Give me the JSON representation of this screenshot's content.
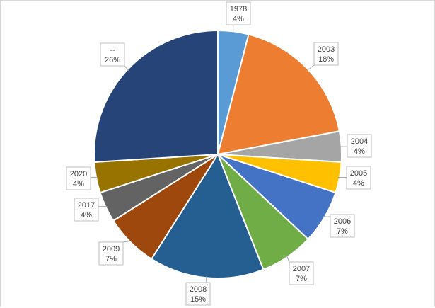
{
  "chart_data": {
    "type": "pie",
    "title": "",
    "start_angle_deg": 0,
    "direction": "clockwise",
    "slices": [
      {
        "label": "1978",
        "value": 4,
        "pct_label": "4%",
        "color": "#5b9bd5"
      },
      {
        "label": "2003",
        "value": 18,
        "pct_label": "18%",
        "color": "#ed7d31"
      },
      {
        "label": "2004",
        "value": 4,
        "pct_label": "4%",
        "color": "#a5a5a5"
      },
      {
        "label": "2005",
        "value": 4,
        "pct_label": "4%",
        "color": "#ffc000"
      },
      {
        "label": "2006",
        "value": 7,
        "pct_label": "7%",
        "color": "#4472c4"
      },
      {
        "label": "2007",
        "value": 7,
        "pct_label": "7%",
        "color": "#70ad47"
      },
      {
        "label": "2008",
        "value": 15,
        "pct_label": "15%",
        "color": "#255e91"
      },
      {
        "label": "2009",
        "value": 7,
        "pct_label": "7%",
        "color": "#9e480e"
      },
      {
        "label": "2017",
        "value": 4,
        "pct_label": "4%",
        "color": "#636363"
      },
      {
        "label": "2020",
        "value": 4,
        "pct_label": "4%",
        "color": "#997300"
      },
      {
        "label": "--",
        "value": 26,
        "pct_label": "26%",
        "color": "#264478"
      }
    ]
  }
}
